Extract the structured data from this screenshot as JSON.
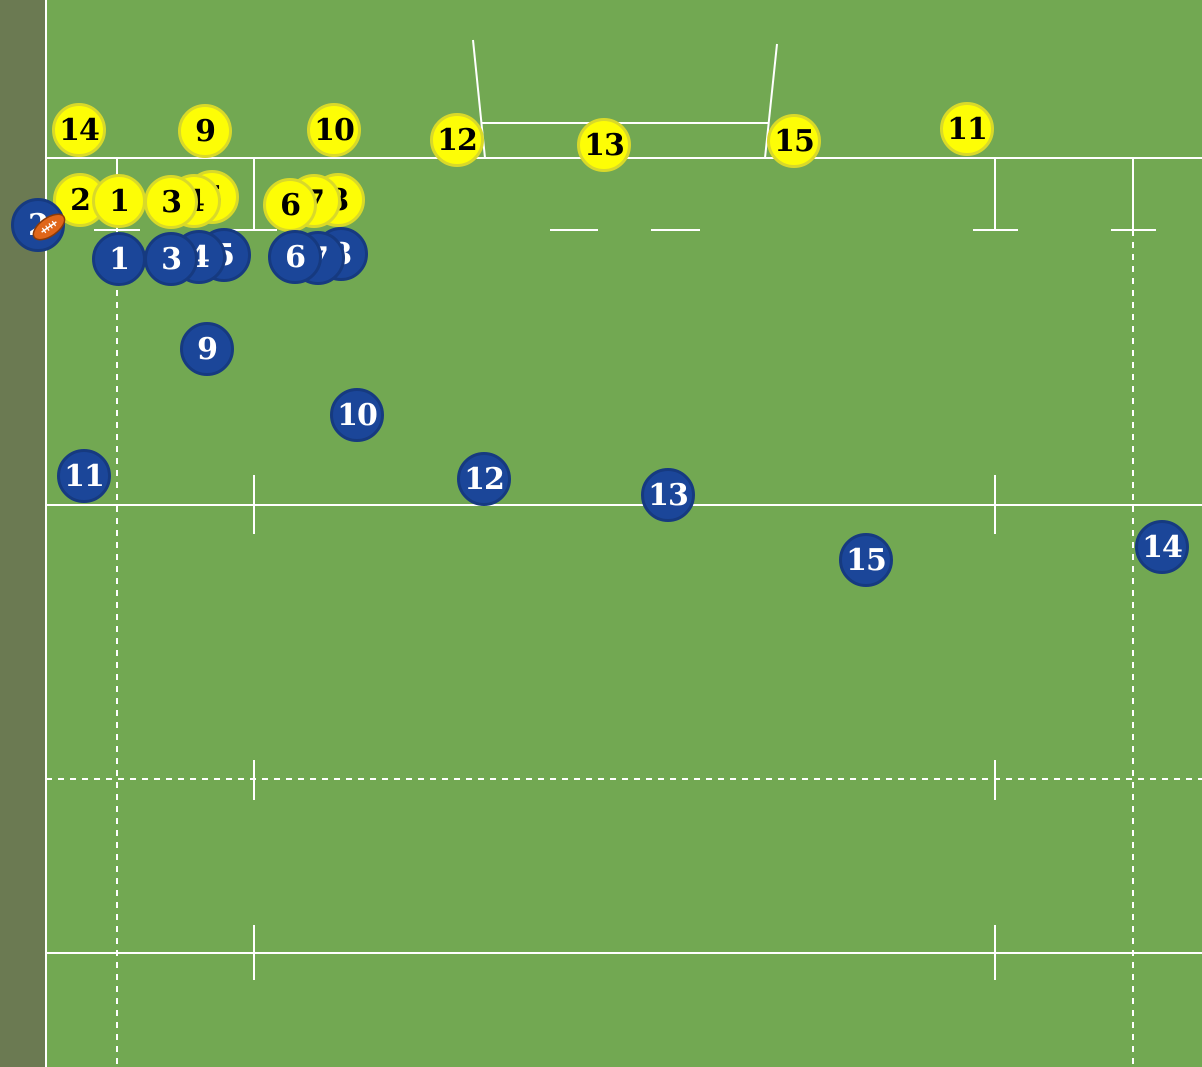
{
  "colors": {
    "grass": "#72a852",
    "touch_area": "#6b7a52",
    "line": "#ffffff",
    "yellow_team": "#fdfd06",
    "blue_team": "#1b4699",
    "ball": "#e0661a"
  },
  "ball": {
    "icon": "rugby-ball-icon"
  },
  "teams": {
    "yellow": {
      "players": [
        {
          "number": "14"
        },
        {
          "number": "9"
        },
        {
          "number": "10"
        },
        {
          "number": "12"
        },
        {
          "number": "13"
        },
        {
          "number": "15"
        },
        {
          "number": "11"
        },
        {
          "number": "2"
        },
        {
          "number": "5"
        },
        {
          "number": "4"
        },
        {
          "number": "1"
        },
        {
          "number": "3"
        },
        {
          "number": "8"
        },
        {
          "number": "7"
        },
        {
          "number": "6"
        }
      ]
    },
    "blue": {
      "players": [
        {
          "number": "2"
        },
        {
          "number": "5"
        },
        {
          "number": "4"
        },
        {
          "number": "1"
        },
        {
          "number": "3"
        },
        {
          "number": "8"
        },
        {
          "number": "7"
        },
        {
          "number": "6"
        },
        {
          "number": "9"
        },
        {
          "number": "10"
        },
        {
          "number": "11"
        },
        {
          "number": "12"
        },
        {
          "number": "13"
        },
        {
          "number": "15"
        },
        {
          "number": "14"
        }
      ]
    }
  }
}
